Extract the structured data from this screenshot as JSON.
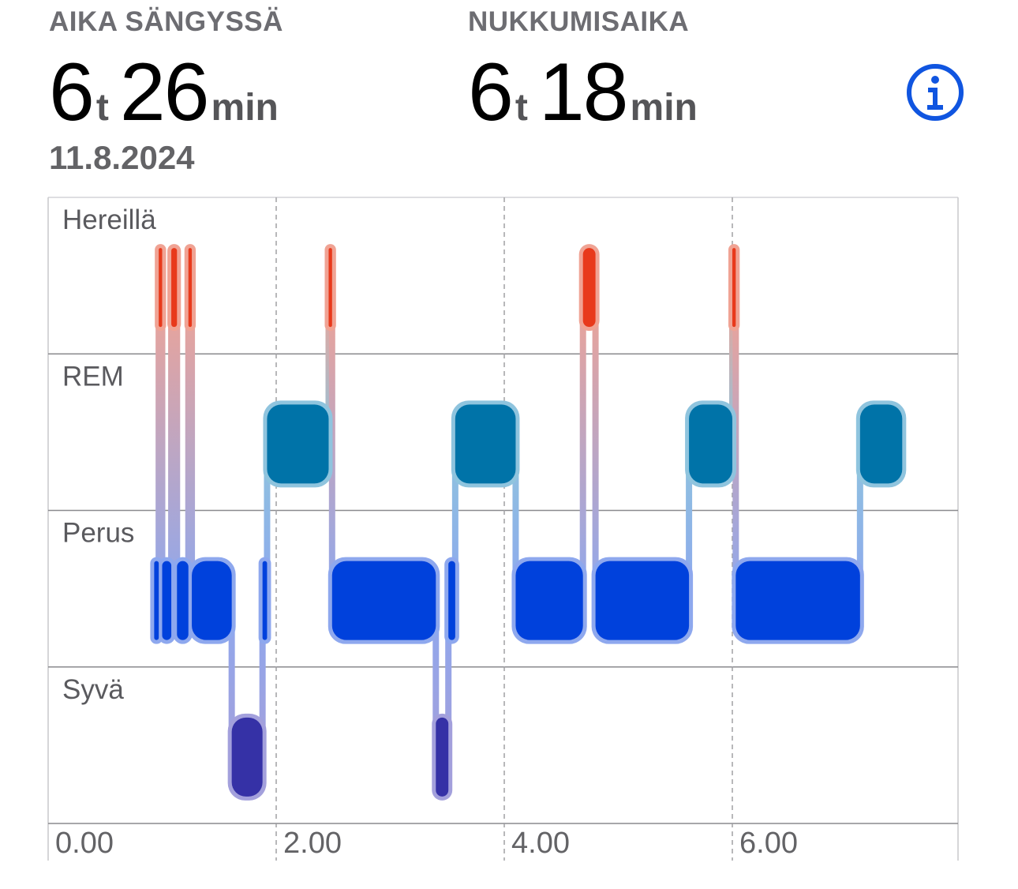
{
  "header": {
    "in_bed": {
      "label": "AIKA SÄNGYSSÄ",
      "hours": "6",
      "hours_unit": "t",
      "minutes": "26",
      "minutes_unit": "min"
    },
    "asleep": {
      "label": "NUKKUMISAIKA",
      "hours": "6",
      "hours_unit": "t",
      "minutes": "18",
      "minutes_unit": "min"
    },
    "date": "11.8.2024",
    "info_icon": "info-circle-icon"
  },
  "colors": {
    "awake": "#e8391b",
    "awake_halo": "#f0a394",
    "rem": "#0073a8",
    "rem_halo": "#8fc4de",
    "core": "#0041dc",
    "core_halo": "#8ea8ee",
    "deep": "#3531a6",
    "deep_halo": "#a3a0dc",
    "accent": "#1055e0",
    "grid": "#8a8a8e",
    "label": "#5a5a5e"
  },
  "chart_data": {
    "type": "timeline",
    "xlabel": "",
    "ylabel": "",
    "x_unit": "hours",
    "xlim": [
      0,
      8
    ],
    "x_ticks": [
      {
        "value": 0,
        "label": "0.00"
      },
      {
        "value": 2,
        "label": "2.00"
      },
      {
        "value": 4,
        "label": "4.00"
      },
      {
        "value": 6,
        "label": "6.00"
      }
    ],
    "stages": [
      "Hereillä",
      "REM",
      "Perus",
      "Syvä"
    ],
    "segments": [
      {
        "stage": "Perus",
        "start": 0.93,
        "end": 0.97
      },
      {
        "stage": "Hereillä",
        "start": 0.97,
        "end": 1.0
      },
      {
        "stage": "Perus",
        "start": 1.0,
        "end": 1.08
      },
      {
        "stage": "Hereillä",
        "start": 1.08,
        "end": 1.13
      },
      {
        "stage": "Perus",
        "start": 1.13,
        "end": 1.23
      },
      {
        "stage": "Hereillä",
        "start": 1.23,
        "end": 1.26
      },
      {
        "stage": "Perus",
        "start": 1.26,
        "end": 1.61
      },
      {
        "stage": "Syvä",
        "start": 1.61,
        "end": 1.88
      },
      {
        "stage": "Perus",
        "start": 1.88,
        "end": 1.92
      },
      {
        "stage": "REM",
        "start": 1.92,
        "end": 2.46
      },
      {
        "stage": "Hereillä",
        "start": 2.46,
        "end": 2.49
      },
      {
        "stage": "Perus",
        "start": 2.49,
        "end": 3.4
      },
      {
        "stage": "Syvä",
        "start": 3.4,
        "end": 3.51
      },
      {
        "stage": "Perus",
        "start": 3.51,
        "end": 3.57
      },
      {
        "stage": "REM",
        "start": 3.57,
        "end": 4.1
      },
      {
        "stage": "Perus",
        "start": 4.1,
        "end": 4.69
      },
      {
        "stage": "Hereillä",
        "start": 4.69,
        "end": 4.8
      },
      {
        "stage": "Perus",
        "start": 4.8,
        "end": 5.62
      },
      {
        "stage": "REM",
        "start": 5.62,
        "end": 6.0
      },
      {
        "stage": "Hereillä",
        "start": 6.0,
        "end": 6.03
      },
      {
        "stage": "Perus",
        "start": 6.03,
        "end": 7.12
      },
      {
        "stage": "REM",
        "start": 7.12,
        "end": 7.49
      }
    ]
  }
}
